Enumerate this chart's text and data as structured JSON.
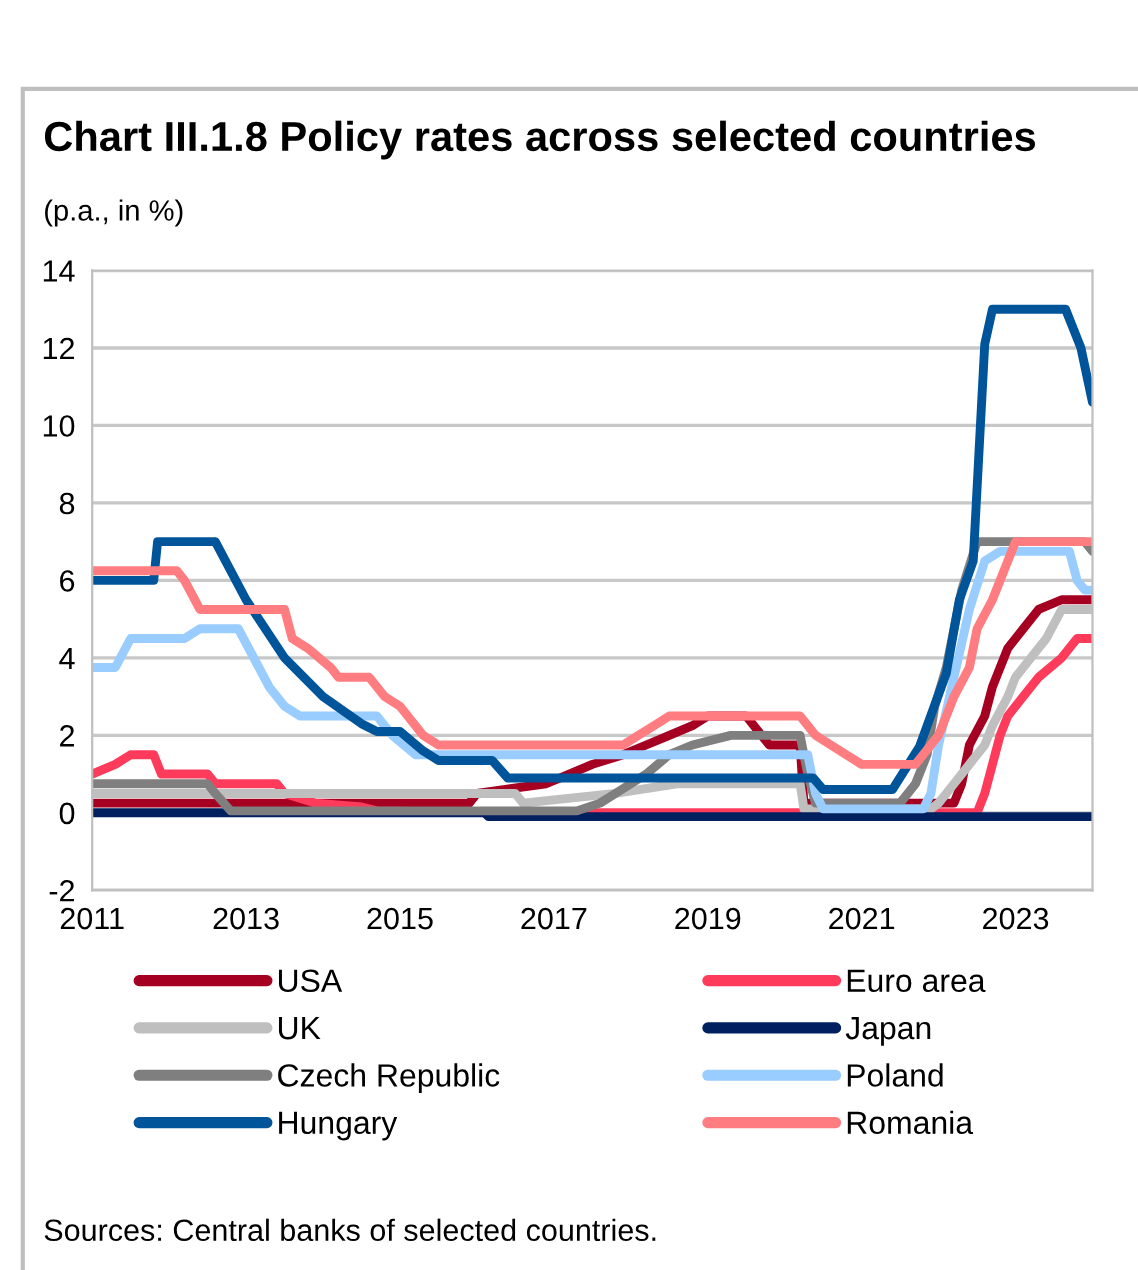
{
  "chart_data": {
    "type": "line",
    "title": "Chart III.1.8 Policy rates across selected countries",
    "subtitle": "(p.a., in %)",
    "annotations": [
      "Sources: Central banks of selected countries."
    ],
    "xlim": [
      2011,
      2024
    ],
    "xticks": [
      2011,
      2013,
      2015,
      2017,
      2019,
      2021,
      2023
    ],
    "ylim": [
      -2,
      14
    ],
    "yticks": [
      -2,
      0,
      2,
      4,
      6,
      8,
      10,
      12,
      14
    ],
    "grid": "y",
    "legend": "bottom",
    "line_style": "solid",
    "marker": "none",
    "series": [
      {
        "name": "USA",
        "color": "#a50021",
        "x": [
          2011,
          2015.9,
          2016.0,
          2016.9,
          2017.2,
          2017.5,
          2017.9,
          2018.2,
          2018.5,
          2018.8,
          2019.0,
          2019.5,
          2019.6,
          2019.8,
          2020.2,
          2020.25,
          2022.2,
          2022.3,
          2022.4,
          2022.6,
          2022.7,
          2022.9,
          2023.1,
          2023.3,
          2023.6,
          2024
        ],
        "values": [
          0.25,
          0.25,
          0.5,
          0.75,
          1.0,
          1.25,
          1.5,
          1.75,
          2.0,
          2.25,
          2.5,
          2.5,
          2.25,
          1.75,
          1.75,
          0.25,
          0.25,
          0.75,
          1.75,
          2.5,
          3.25,
          4.25,
          4.75,
          5.25,
          5.5,
          5.5
        ]
      },
      {
        "name": "Euro area",
        "color": "#ff3b5c",
        "x": [
          2011,
          2011.3,
          2011.5,
          2011.8,
          2011.9,
          2012.5,
          2012.6,
          2013.4,
          2013.5,
          2013.9,
          2014.5,
          2014.7,
          2016.2,
          2022.5,
          2022.6,
          2022.7,
          2022.8,
          2022.9,
          2023.1,
          2023.3,
          2023.6,
          2023.8,
          2024
        ],
        "values": [
          1.0,
          1.25,
          1.5,
          1.5,
          1.0,
          1.0,
          0.75,
          0.75,
          0.5,
          0.25,
          0.15,
          0.05,
          0.0,
          0.0,
          0.5,
          1.25,
          2.0,
          2.5,
          3.0,
          3.5,
          4.0,
          4.5,
          4.5
        ]
      },
      {
        "name": "UK",
        "color": "#bfbfbf",
        "x": [
          2011,
          2016.5,
          2016.6,
          2017.8,
          2018.6,
          2020.2,
          2020.25,
          2021.9,
          2022.0,
          2022.1,
          2022.2,
          2022.4,
          2022.6,
          2022.7,
          2022.9,
          2023.0,
          2023.2,
          2023.4,
          2023.6,
          2024
        ],
        "values": [
          0.5,
          0.5,
          0.25,
          0.5,
          0.75,
          0.75,
          0.1,
          0.1,
          0.25,
          0.5,
          0.75,
          1.25,
          1.75,
          2.25,
          3.0,
          3.5,
          4.0,
          4.5,
          5.25,
          5.25
        ]
      },
      {
        "name": "Japan",
        "color": "#002060",
        "x": [
          2011,
          2016.1,
          2016.15,
          2024
        ],
        "values": [
          0.0,
          0.0,
          -0.1,
          -0.1
        ]
      },
      {
        "name": "Czech Republic",
        "color": "#7f7f7f",
        "x": [
          2011,
          2012.5,
          2012.6,
          2012.8,
          2017.3,
          2017.6,
          2017.8,
          2018.0,
          2018.2,
          2018.5,
          2018.8,
          2019.3,
          2020.2,
          2020.3,
          2020.4,
          2021.5,
          2021.7,
          2021.85,
          2021.95,
          2022.1,
          2022.3,
          2022.5,
          2023.9,
          2024
        ],
        "values": [
          0.75,
          0.75,
          0.5,
          0.05,
          0.05,
          0.25,
          0.5,
          0.75,
          1.0,
          1.5,
          1.75,
          2.0,
          2.0,
          1.0,
          0.25,
          0.25,
          0.75,
          1.5,
          2.75,
          3.75,
          5.75,
          7.0,
          7.0,
          6.75
        ]
      },
      {
        "name": "Poland",
        "color": "#99ccff",
        "x": [
          2011,
          2011.3,
          2011.5,
          2012.2,
          2012.4,
          2012.9,
          2013.1,
          2013.3,
          2013.5,
          2013.7,
          2014.7,
          2014.9,
          2015.2,
          2020.3,
          2020.4,
          2020.5,
          2021.8,
          2021.9,
          2022.0,
          2022.2,
          2022.4,
          2022.6,
          2022.8,
          2023.7,
          2023.8,
          2023.9,
          2024
        ],
        "values": [
          3.75,
          3.75,
          4.5,
          4.5,
          4.75,
          4.75,
          4.0,
          3.25,
          2.75,
          2.5,
          2.5,
          2.0,
          1.5,
          1.5,
          0.5,
          0.1,
          0.1,
          0.5,
          1.75,
          3.5,
          5.25,
          6.5,
          6.75,
          6.75,
          6.0,
          5.75,
          5.75
        ]
      },
      {
        "name": "Hungary",
        "color": "#00559a",
        "x": [
          2011,
          2011.8,
          2011.85,
          2012.6,
          2013.0,
          2013.5,
          2014.0,
          2014.5,
          2014.7,
          2015.0,
          2015.3,
          2015.5,
          2016.2,
          2016.4,
          2020.37,
          2020.5,
          2021.3,
          2021.4,
          2021.75,
          2022.1,
          2022.27,
          2022.45,
          2022.53,
          2022.6,
          2022.7,
          2023.65,
          2023.85,
          2024
        ],
        "values": [
          6.0,
          6.0,
          7.0,
          7.0,
          5.5,
          4.0,
          3.0,
          2.3,
          2.1,
          2.1,
          1.6,
          1.35,
          1.35,
          0.9,
          0.9,
          0.6,
          0.6,
          0.6,
          1.7,
          3.6,
          5.5,
          6.5,
          9.5,
          12.1,
          13.0,
          13.0,
          12.0,
          10.6
        ]
      },
      {
        "name": "Romania",
        "color": "#ff7c80",
        "x": [
          2011,
          2012.1,
          2012.2,
          2012.4,
          2013.5,
          2013.6,
          2013.8,
          2014.1,
          2014.2,
          2014.6,
          2014.8,
          2015.0,
          2015.3,
          2015.5,
          2017.9,
          2018.1,
          2018.3,
          2018.5,
          2020.2,
          2020.4,
          2020.6,
          2020.8,
          2021.0,
          2021.7,
          2021.9,
          2022.0,
          2022.2,
          2022.4,
          2022.5,
          2022.7,
          2022.85,
          2023.0,
          2024
        ],
        "values": [
          6.25,
          6.25,
          6.0,
          5.25,
          5.25,
          4.5,
          4.25,
          3.75,
          3.5,
          3.5,
          3.0,
          2.75,
          2.0,
          1.75,
          1.75,
          2.0,
          2.25,
          2.5,
          2.5,
          2.0,
          1.75,
          1.5,
          1.25,
          1.25,
          1.75,
          2.0,
          3.0,
          3.75,
          4.75,
          5.5,
          6.25,
          7.0,
          7.0
        ]
      }
    ]
  }
}
